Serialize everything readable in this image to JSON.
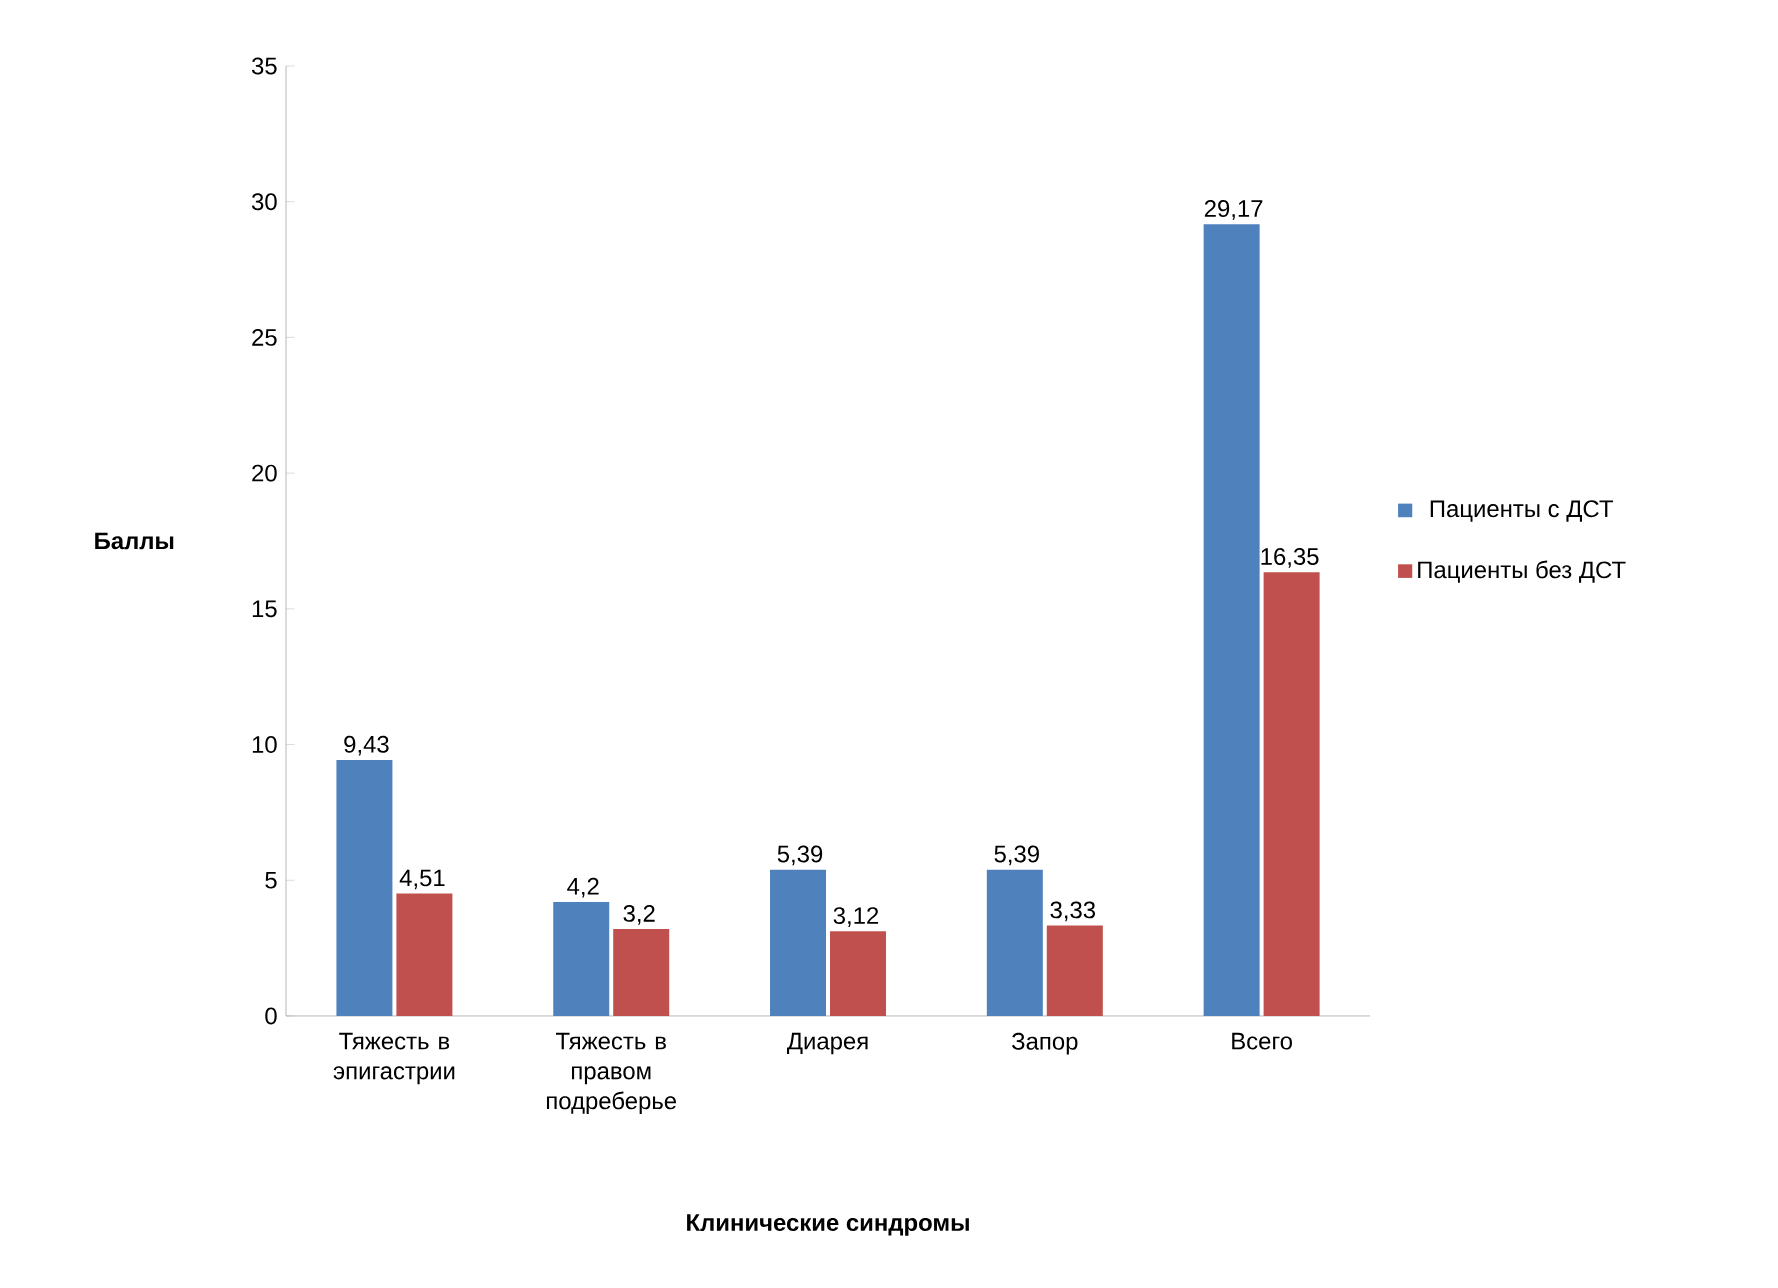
{
  "chart_data": {
    "type": "bar",
    "xlabel": "Клинические синдромы",
    "ylabel": "Баллы",
    "categories": [
      "Тяжесть в эпигастрии",
      "Тяжесть в правом подреберье",
      "Диарея",
      "Запор",
      "Всего"
    ],
    "series": [
      {
        "name": "Пациенты с ДСТ",
        "color": "#4f81bd",
        "values": [
          9.43,
          4.2,
          5.39,
          5.39,
          29.17
        ],
        "value_labels": [
          "9,43",
          "4,2",
          "5,39",
          "5,39",
          "29,17"
        ]
      },
      {
        "name": "Пациенты без ДСТ",
        "color": "#c0504d",
        "values": [
          4.51,
          3.2,
          3.12,
          3.33,
          16.35
        ],
        "value_labels": [
          "4,51",
          "3,2",
          "3,12",
          "3,33",
          "16,35"
        ]
      }
    ],
    "ylim": [
      0,
      35
    ],
    "yticks": [
      0,
      5,
      10,
      15,
      20,
      25,
      30,
      35
    ],
    "grid": false,
    "legend": "right"
  }
}
